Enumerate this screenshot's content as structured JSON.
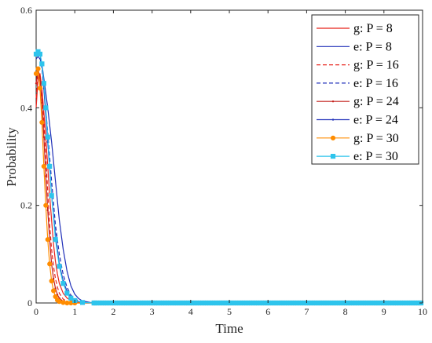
{
  "chart_data": {
    "type": "line",
    "xlabel": "Time",
    "ylabel": "Probability",
    "xlim": [
      0,
      10
    ],
    "ylim": [
      0,
      0.6
    ],
    "xticks": [
      "0",
      "1",
      "2",
      "3",
      "4",
      "5",
      "6",
      "7",
      "8",
      "9",
      "10"
    ],
    "yticks": [
      "0",
      "0.2",
      "0.4",
      "0.6"
    ],
    "grid": false,
    "legend_position": "top-right",
    "series": [
      {
        "name": "g: P = 8",
        "color": "#e8231b",
        "style": "solid",
        "marker": "none",
        "x": [
          0,
          0.05,
          0.1,
          0.15,
          0.2,
          0.25,
          0.3,
          0.35,
          0.4,
          0.45,
          0.5,
          0.55,
          0.6,
          0.7,
          0.8,
          0.9,
          1.0,
          1.2,
          1.5,
          2,
          10
        ],
        "y": [
          0.4,
          0.46,
          0.47,
          0.44,
          0.39,
          0.34,
          0.28,
          0.22,
          0.17,
          0.12,
          0.085,
          0.06,
          0.04,
          0.02,
          0.01,
          0.005,
          0.002,
          0.001,
          0,
          0,
          0
        ]
      },
      {
        "name": "e: P = 8",
        "color": "#1f2fb8",
        "style": "solid",
        "marker": "none",
        "x": [
          0,
          0.05,
          0.1,
          0.15,
          0.2,
          0.3,
          0.4,
          0.5,
          0.6,
          0.7,
          0.8,
          0.9,
          1.0,
          1.1,
          1.2,
          1.4,
          1.6,
          2,
          10
        ],
        "y": [
          0.5,
          0.505,
          0.5,
          0.49,
          0.46,
          0.4,
          0.33,
          0.25,
          0.17,
          0.11,
          0.065,
          0.035,
          0.018,
          0.009,
          0.004,
          0.001,
          0,
          0,
          0
        ]
      },
      {
        "name": "g: P = 16",
        "color": "#e8231b",
        "style": "dashed",
        "marker": "none",
        "x": [
          0,
          0.05,
          0.1,
          0.15,
          0.2,
          0.25,
          0.3,
          0.35,
          0.4,
          0.45,
          0.5,
          0.55,
          0.6,
          0.7,
          0.8,
          0.9,
          1.0,
          1.5,
          10
        ],
        "y": [
          0.42,
          0.47,
          0.465,
          0.43,
          0.37,
          0.3,
          0.23,
          0.16,
          0.11,
          0.075,
          0.05,
          0.033,
          0.02,
          0.008,
          0.003,
          0.001,
          0,
          0,
          0
        ]
      },
      {
        "name": "e: P = 16",
        "color": "#1f2fb8",
        "style": "dashed",
        "marker": "none",
        "x": [
          0,
          0.05,
          0.1,
          0.15,
          0.2,
          0.3,
          0.4,
          0.5,
          0.6,
          0.7,
          0.8,
          0.9,
          1.0,
          1.2,
          1.5,
          10
        ],
        "y": [
          0.51,
          0.51,
          0.505,
          0.48,
          0.44,
          0.35,
          0.25,
          0.16,
          0.1,
          0.058,
          0.032,
          0.016,
          0.008,
          0.002,
          0,
          0
        ]
      },
      {
        "name": "g: P = 24",
        "color": "#c4201b",
        "style": "solid",
        "marker": "dot",
        "x": [
          0,
          0.05,
          0.1,
          0.15,
          0.2,
          0.25,
          0.3,
          0.35,
          0.4,
          0.45,
          0.5,
          0.55,
          0.6,
          0.7,
          0.8,
          0.9,
          1.0,
          1.5,
          10
        ],
        "y": [
          0.45,
          0.48,
          0.46,
          0.41,
          0.34,
          0.26,
          0.19,
          0.13,
          0.08,
          0.05,
          0.03,
          0.017,
          0.01,
          0.003,
          0.001,
          0,
          0,
          0,
          0
        ]
      },
      {
        "name": "e: P = 24",
        "color": "#1f2fb8",
        "style": "solid",
        "marker": "dot",
        "x": [
          0,
          0.05,
          0.1,
          0.15,
          0.2,
          0.3,
          0.4,
          0.5,
          0.6,
          0.7,
          0.8,
          0.9,
          1.0,
          1.2,
          1.5,
          10
        ],
        "y": [
          0.51,
          0.515,
          0.51,
          0.49,
          0.44,
          0.33,
          0.22,
          0.14,
          0.08,
          0.045,
          0.024,
          0.012,
          0.006,
          0.001,
          0,
          0
        ]
      },
      {
        "name": "g: P = 30",
        "color": "#ff8c00",
        "style": "solid",
        "marker": "circle",
        "x": [
          0,
          0.05,
          0.1,
          0.15,
          0.2,
          0.25,
          0.3,
          0.35,
          0.4,
          0.45,
          0.5,
          0.55,
          0.6,
          0.7,
          0.8,
          0.9,
          1.0,
          1.5,
          10
        ],
        "y": [
          0.47,
          0.48,
          0.44,
          0.37,
          0.28,
          0.2,
          0.13,
          0.08,
          0.045,
          0.025,
          0.013,
          0.006,
          0.003,
          0.001,
          0,
          0,
          0,
          0,
          0
        ]
      },
      {
        "name": "e: P = 30",
        "color": "#2ec4ec",
        "style": "solid",
        "marker": "square",
        "x": [
          0,
          0.05,
          0.1,
          0.15,
          0.2,
          0.25,
          0.3,
          0.35,
          0.4,
          0.5,
          0.6,
          0.7,
          0.8,
          0.9,
          1.0,
          1.2,
          1.5,
          10
        ],
        "y": [
          0.51,
          0.515,
          0.51,
          0.49,
          0.45,
          0.4,
          0.34,
          0.28,
          0.22,
          0.13,
          0.075,
          0.04,
          0.02,
          0.01,
          0.005,
          0.001,
          0,
          0
        ]
      }
    ]
  }
}
